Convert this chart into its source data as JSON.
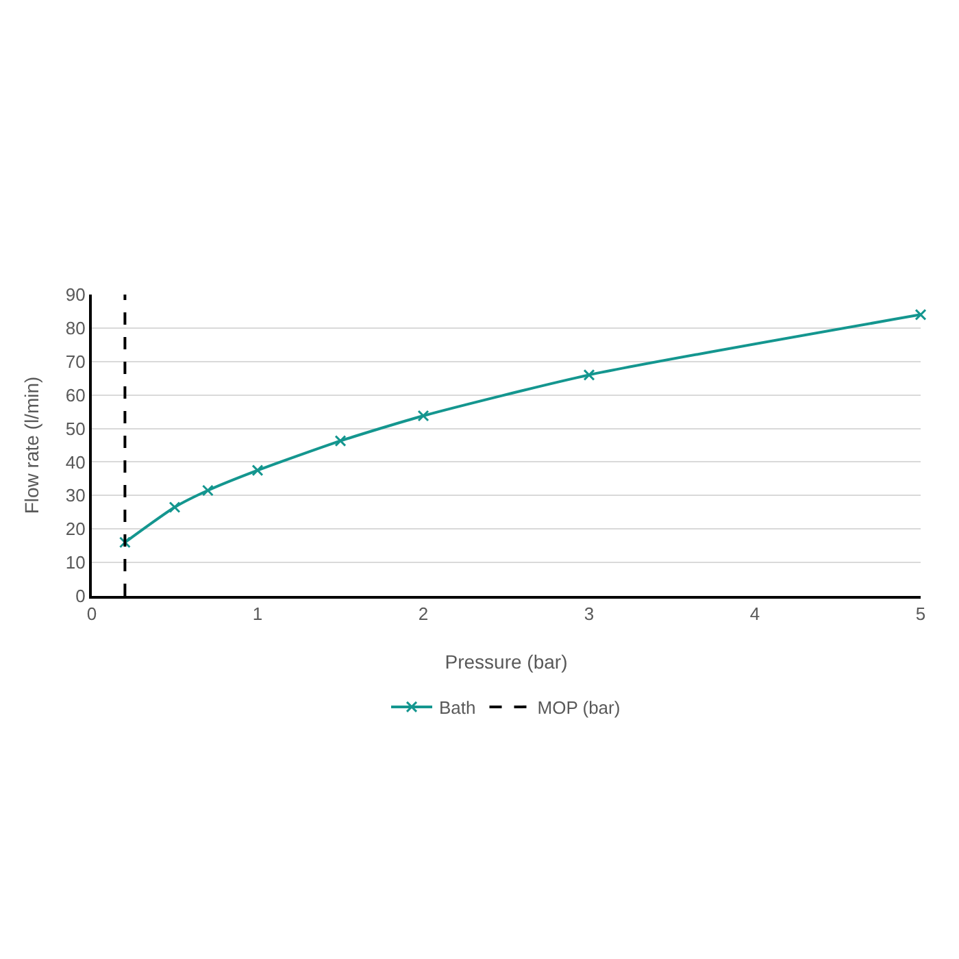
{
  "chart_data": {
    "type": "line",
    "xlabel": "Pressure (bar)",
    "ylabel": "Flow rate (l/min)",
    "x": [
      0.2,
      0.5,
      0.7,
      1,
      1.5,
      2,
      3,
      5
    ],
    "series": [
      {
        "name": "Bath",
        "color": "#14968f",
        "values": [
          16,
          26.5,
          31.5,
          37.5,
          46.3,
          53.8,
          66,
          84
        ]
      }
    ],
    "ref_lines": [
      {
        "axis": "x",
        "value": 0.2,
        "label": "MOP (bar)",
        "color": "#000000",
        "line_style": "dashed"
      }
    ],
    "xlim": [
      0,
      5
    ],
    "xticks": [
      0,
      1,
      2,
      3,
      4,
      5
    ],
    "ylim": [
      0,
      90
    ],
    "yticks": [
      0,
      10,
      20,
      30,
      40,
      50,
      60,
      70,
      80,
      90
    ],
    "grid": "y",
    "legend": "bottom",
    "marker": "cross",
    "line_style": "solid"
  }
}
